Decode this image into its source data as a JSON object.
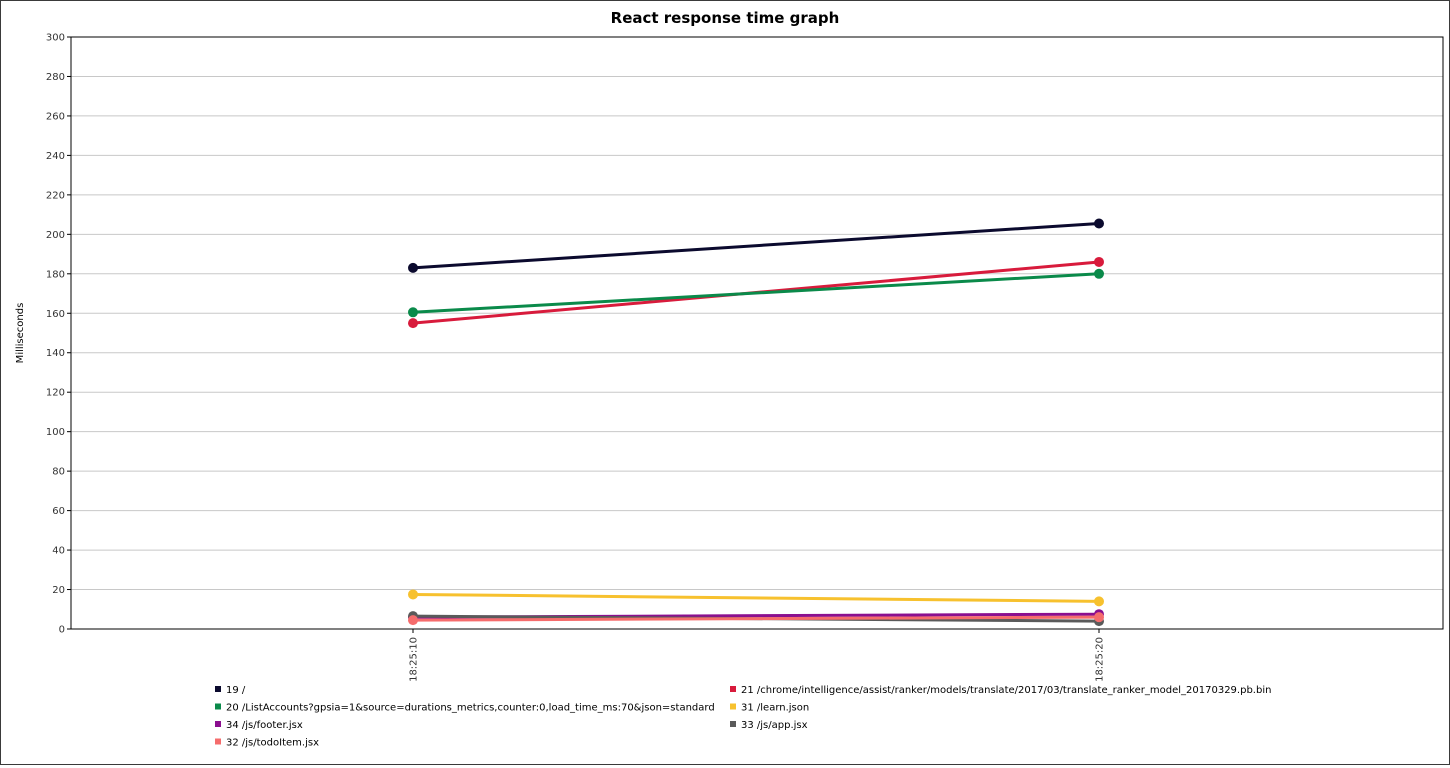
{
  "chart_data": {
    "type": "line",
    "title": "React response time graph",
    "xlabel": "",
    "ylabel": "Milliseconds",
    "x": [
      "18:25:10",
      "18:25:20"
    ],
    "ylim": [
      0,
      300
    ],
    "yticks": [
      0,
      20,
      40,
      60,
      80,
      100,
      120,
      140,
      160,
      180,
      200,
      220,
      240,
      260,
      280,
      300
    ],
    "grid": true,
    "legend_position": "bottom",
    "series": [
      {
        "name": "19 /",
        "color": "#0b0a2e",
        "values": [
          183,
          205.5
        ]
      },
      {
        "name": "21 /chrome/intelligence/assist/ranker/models/translate/2017/03/translate_ranker_model_20170329.pb.bin",
        "color": "#d81b3c",
        "values": [
          155,
          186
        ]
      },
      {
        "name": "20 /ListAccounts?gpsia=1&source=durations_metrics,counter:0,load_time_ms:70&json=standard",
        "color": "#0a8a4a",
        "values": [
          160.5,
          180
        ]
      },
      {
        "name": "31 /learn.json",
        "color": "#f7c12e",
        "values": [
          17.5,
          14
        ]
      },
      {
        "name": "34 /js/footer.jsx",
        "color": "#8b0f8f",
        "values": [
          6,
          7.5
        ]
      },
      {
        "name": "33 /js/app.jsx",
        "color": "#5a5a5a",
        "values": [
          6.5,
          4
        ]
      },
      {
        "name": "32 /js/todoItem.jsx",
        "color": "#f56c6c",
        "values": [
          4.5,
          6
        ]
      }
    ]
  }
}
